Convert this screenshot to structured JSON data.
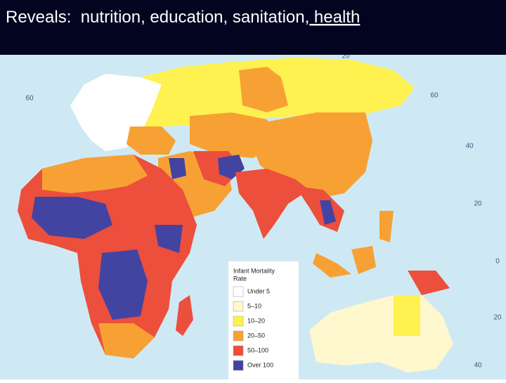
{
  "header": {
    "text": "Reveals:  nutrition, education, sanitation,",
    "link": " health"
  },
  "map": {
    "latitude_labels": [
      "60",
      "60",
      "40",
      "20",
      "0",
      "20",
      "40",
      "20"
    ],
    "legend": {
      "title_lines": [
        "Infant Mortality",
        "Rate"
      ],
      "items": [
        {
          "label": "Under 5",
          "color": "#ffffff"
        },
        {
          "label": "5–10",
          "color": "#fff8cf"
        },
        {
          "label": "10–20",
          "color": "#fff150"
        },
        {
          "label": "20–50",
          "color": "#f7a134"
        },
        {
          "label": "50–100",
          "color": "#ec4f3c"
        },
        {
          "label": "Over 100",
          "color": "#4343a2"
        }
      ]
    }
  }
}
